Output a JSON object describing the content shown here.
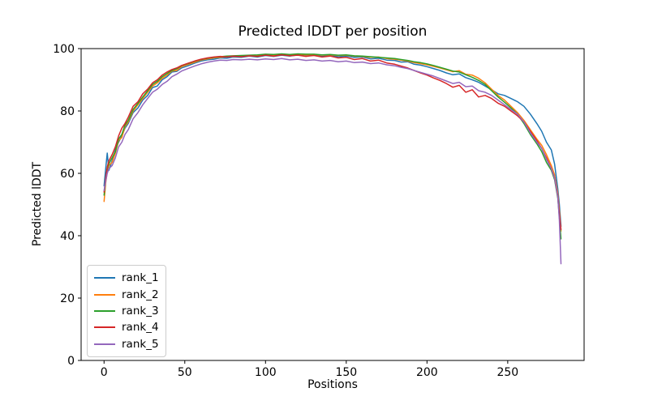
{
  "chart_data": {
    "type": "line",
    "title": "Predicted lDDT per position",
    "xlabel": "Positions",
    "ylabel": "Predicted lDDT",
    "xlim": [
      -14.2,
      297.3
    ],
    "ylim": [
      0,
      100
    ],
    "xticks": [
      0,
      50,
      100,
      150,
      200,
      250
    ],
    "yticks": [
      0,
      20,
      40,
      60,
      80,
      100
    ],
    "grid": false,
    "legend_position": "lower left",
    "x": [
      0,
      1,
      2,
      3,
      5,
      7,
      9,
      11,
      13,
      15,
      18,
      21,
      24,
      27,
      30,
      33,
      36,
      39,
      42,
      45,
      48,
      52,
      56,
      60,
      64,
      68,
      72,
      76,
      80,
      85,
      90,
      95,
      100,
      105,
      110,
      115,
      120,
      125,
      130,
      135,
      140,
      145,
      150,
      155,
      160,
      165,
      170,
      175,
      180,
      184,
      188,
      192,
      196,
      200,
      204,
      208,
      212,
      216,
      220,
      224,
      228,
      232,
      236,
      240,
      244,
      248,
      252,
      256,
      260,
      264,
      268,
      271,
      274,
      277,
      279,
      281,
      282,
      283
    ],
    "series": [
      {
        "name": "rank_1",
        "color": "#1f77b4",
        "values": [
          56,
          61.5,
          66.5,
          61,
          64,
          67.5,
          70,
          72,
          74.5,
          76,
          79.5,
          81,
          83.5,
          85,
          87.5,
          88,
          90,
          91,
          92.5,
          92.7,
          93.8,
          94.5,
          95.3,
          96,
          96.4,
          96.6,
          97,
          96.9,
          97.3,
          97.2,
          97.6,
          97.3,
          97.8,
          97.5,
          97.9,
          97.6,
          98,
          97.6,
          97.9,
          97.5,
          97.8,
          97.4,
          97.6,
          97.2,
          97.3,
          96.7,
          96.9,
          96.3,
          96.2,
          95.7,
          95.8,
          95,
          94.7,
          94.2,
          93.6,
          93,
          92.2,
          91.6,
          91.9,
          90.7,
          90,
          89.2,
          88,
          86.8,
          85.5,
          85,
          84,
          83,
          81.5,
          79,
          76,
          73.5,
          70,
          67.5,
          63,
          55,
          50,
          43
        ]
      },
      {
        "name": "rank_2",
        "color": "#ff7f0e",
        "values": [
          51,
          57,
          60.5,
          62.5,
          63.5,
          66.5,
          70.5,
          71.5,
          75,
          76.5,
          80,
          82,
          84,
          86,
          88,
          89,
          90.5,
          91.5,
          92.8,
          93,
          94.2,
          94.9,
          95.6,
          96.3,
          96.7,
          97,
          97.2,
          97.4,
          97.5,
          97.6,
          97.7,
          97.8,
          98,
          97.9,
          98.1,
          97.9,
          98.2,
          98,
          98.1,
          97.9,
          98,
          97.8,
          97.9,
          97.6,
          97.5,
          97.2,
          97.3,
          96.8,
          96.6,
          96.3,
          96,
          95.5,
          95.2,
          94.8,
          94.3,
          93.8,
          93.2,
          92.6,
          92.9,
          91.8,
          91.5,
          90.5,
          89,
          87,
          85,
          83.5,
          81.5,
          79.5,
          77,
          74,
          71,
          69,
          66,
          62.5,
          59.5,
          53.5,
          48,
          41.5
        ]
      },
      {
        "name": "rank_3",
        "color": "#2ca02c",
        "values": [
          53,
          58,
          61.5,
          63,
          65,
          67,
          71,
          72.5,
          75.5,
          77,
          80.5,
          82.5,
          84.5,
          86.5,
          88.5,
          89.5,
          91,
          92,
          93,
          93.5,
          94.5,
          95.2,
          95.9,
          96.5,
          96.9,
          97.2,
          97.4,
          97.6,
          97.7,
          97.8,
          97.9,
          98,
          98.2,
          98.1,
          98.3,
          98.1,
          98.3,
          98.2,
          98.2,
          98,
          98.1,
          97.9,
          98,
          97.7,
          97.6,
          97.4,
          97.2,
          97,
          96.8,
          96.5,
          96.2,
          95.8,
          95.5,
          95.1,
          94.6,
          94,
          93.4,
          92.8,
          92.5,
          91.6,
          90.8,
          89.8,
          88.5,
          86.5,
          84.5,
          82.8,
          81,
          79,
          76,
          72.5,
          69.5,
          67,
          63.5,
          61,
          58,
          52,
          46,
          39
        ]
      },
      {
        "name": "rank_4",
        "color": "#d62728",
        "values": [
          54,
          58.5,
          62,
          64,
          66,
          68.5,
          72,
          74.5,
          76,
          78,
          81.5,
          83,
          85.5,
          87,
          89,
          90,
          91.5,
          92.5,
          93.3,
          93.8,
          94.6,
          95.3,
          96,
          96.6,
          97,
          97.3,
          97.5,
          97.3,
          97.6,
          97.4,
          97.7,
          97.5,
          97.9,
          97.6,
          98,
          97.7,
          97.9,
          97.5,
          97.8,
          97.3,
          97.6,
          97,
          97.2,
          96.5,
          96.8,
          96,
          96.3,
          95.4,
          95,
          94.4,
          93.8,
          93,
          92.2,
          91.5,
          90.6,
          89.8,
          88.8,
          87.6,
          88.2,
          86,
          86.8,
          84.5,
          85,
          84,
          82.5,
          81.5,
          80,
          78.5,
          76.5,
          73.5,
          70.5,
          68,
          65,
          61.5,
          58.5,
          52.5,
          47,
          42
        ]
      },
      {
        "name": "rank_5",
        "color": "#9467bd",
        "values": [
          54.5,
          57.5,
          60,
          61.5,
          62.5,
          65,
          68.5,
          70,
          72.5,
          74,
          77.5,
          79.5,
          82,
          84,
          86,
          87,
          88.5,
          89.5,
          91,
          91.8,
          92.8,
          93.6,
          94.4,
          95.1,
          95.6,
          96,
          96.3,
          96.2,
          96.5,
          96.4,
          96.6,
          96.4,
          96.7,
          96.5,
          96.8,
          96.4,
          96.6,
          96.2,
          96.4,
          96,
          96.2,
          95.8,
          96,
          95.5,
          95.7,
          95.2,
          95.4,
          94.8,
          94.5,
          94,
          93.6,
          93,
          92.4,
          91.8,
          91.2,
          90.4,
          89.6,
          88.8,
          89.2,
          87.8,
          88,
          86.5,
          86,
          85,
          83.5,
          82,
          80.5,
          79,
          76.5,
          73,
          70,
          68,
          64.5,
          61.5,
          58.5,
          52.5,
          45,
          31
        ]
      }
    ]
  }
}
